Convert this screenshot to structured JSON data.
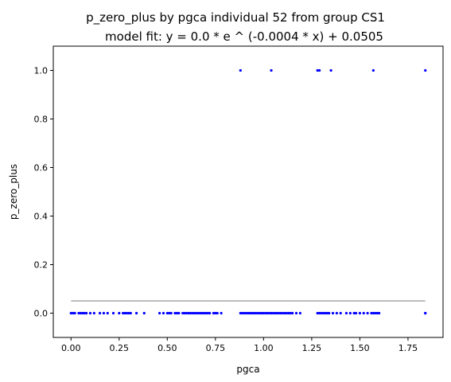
{
  "chart_data": {
    "type": "scatter",
    "title": "p_zero_plus by pgca individual 52 from group CS1",
    "subtitle": "model fit: y = 0.0 * e ^ (-0.0004 * x) + 0.0505",
    "xlabel": "pgca",
    "ylabel": "p_zero_plus",
    "xlim": [
      -0.092,
      1.932
    ],
    "ylim": [
      -0.1,
      1.1
    ],
    "xticks": [
      {
        "value": 0.0,
        "label": "0.00"
      },
      {
        "value": 0.25,
        "label": "0.25"
      },
      {
        "value": 0.5,
        "label": "0.50"
      },
      {
        "value": 0.75,
        "label": "0.75"
      },
      {
        "value": 1.0,
        "label": "1.00"
      },
      {
        "value": 1.25,
        "label": "1.25"
      },
      {
        "value": 1.5,
        "label": "1.50"
      },
      {
        "value": 1.75,
        "label": "1.75"
      }
    ],
    "yticks": [
      {
        "value": 0.0,
        "label": "0.0"
      },
      {
        "value": 0.2,
        "label": "0.2"
      },
      {
        "value": 0.4,
        "label": "0.4"
      },
      {
        "value": 0.6,
        "label": "0.6"
      },
      {
        "value": 0.8,
        "label": "0.8"
      },
      {
        "value": 1.0,
        "label": "1.0"
      }
    ],
    "grid": false,
    "colors": {
      "points": "#0000ff",
      "fit_line": "#a8a8a8"
    },
    "fit_line": {
      "x": [
        0.0,
        1.84
      ],
      "y": [
        0.0505,
        0.0505
      ]
    },
    "series": [
      {
        "x": [
          0.0,
          0.01,
          0.02,
          0.04,
          0.05,
          0.06,
          0.07,
          0.08,
          0.1,
          0.12,
          0.15,
          0.17,
          0.19,
          0.22,
          0.25,
          0.27,
          0.28,
          0.29,
          0.3,
          0.31,
          0.34,
          0.38,
          0.46,
          0.48,
          0.5,
          0.51,
          0.52,
          0.54,
          0.55,
          0.56,
          0.58,
          0.59,
          0.6,
          0.61,
          0.62,
          0.63,
          0.64,
          0.65,
          0.66,
          0.67,
          0.68,
          0.69,
          0.7,
          0.71,
          0.72,
          0.74,
          0.75,
          0.76,
          0.78,
          0.88,
          0.89,
          0.9,
          0.91,
          0.92,
          0.93,
          0.94,
          0.95,
          0.96,
          0.97,
          0.98,
          0.99,
          1.0,
          1.01,
          1.02,
          1.03,
          1.04,
          1.05,
          1.06,
          1.07,
          1.08,
          1.09,
          1.1,
          1.11,
          1.12,
          1.13,
          1.14,
          1.15,
          1.17,
          1.19,
          1.28,
          1.29,
          1.3,
          1.31,
          1.32,
          1.33,
          1.34,
          1.36,
          1.38,
          1.4,
          1.43,
          1.45,
          1.47,
          1.48,
          1.5,
          1.52,
          1.54,
          1.56,
          1.57,
          1.58,
          1.59,
          1.6,
          1.84,
          1.84,
          0.88,
          1.04,
          1.28,
          1.29,
          1.35,
          1.57,
          1.84
        ],
        "y": [
          0,
          0,
          0,
          0,
          0,
          0,
          0,
          0,
          0,
          0,
          0,
          0,
          0,
          0,
          0,
          0,
          0,
          0,
          0,
          0,
          0,
          0,
          0,
          0,
          0,
          0,
          0,
          0,
          0,
          0,
          0,
          0,
          0,
          0,
          0,
          0,
          0,
          0,
          0,
          0,
          0,
          0,
          0,
          0,
          0,
          0,
          0,
          0,
          0,
          0,
          0,
          0,
          0,
          0,
          0,
          0,
          0,
          0,
          0,
          0,
          0,
          0,
          0,
          0,
          0,
          0,
          0,
          0,
          0,
          0,
          0,
          0,
          0,
          0,
          0,
          0,
          0,
          0,
          0,
          0,
          0,
          0,
          0,
          0,
          0,
          0,
          0,
          0,
          0,
          0,
          0,
          0,
          0,
          0,
          0,
          0,
          0,
          0,
          0,
          0,
          0,
          0,
          0,
          1,
          1,
          1,
          1,
          1,
          1,
          1
        ]
      }
    ]
  }
}
